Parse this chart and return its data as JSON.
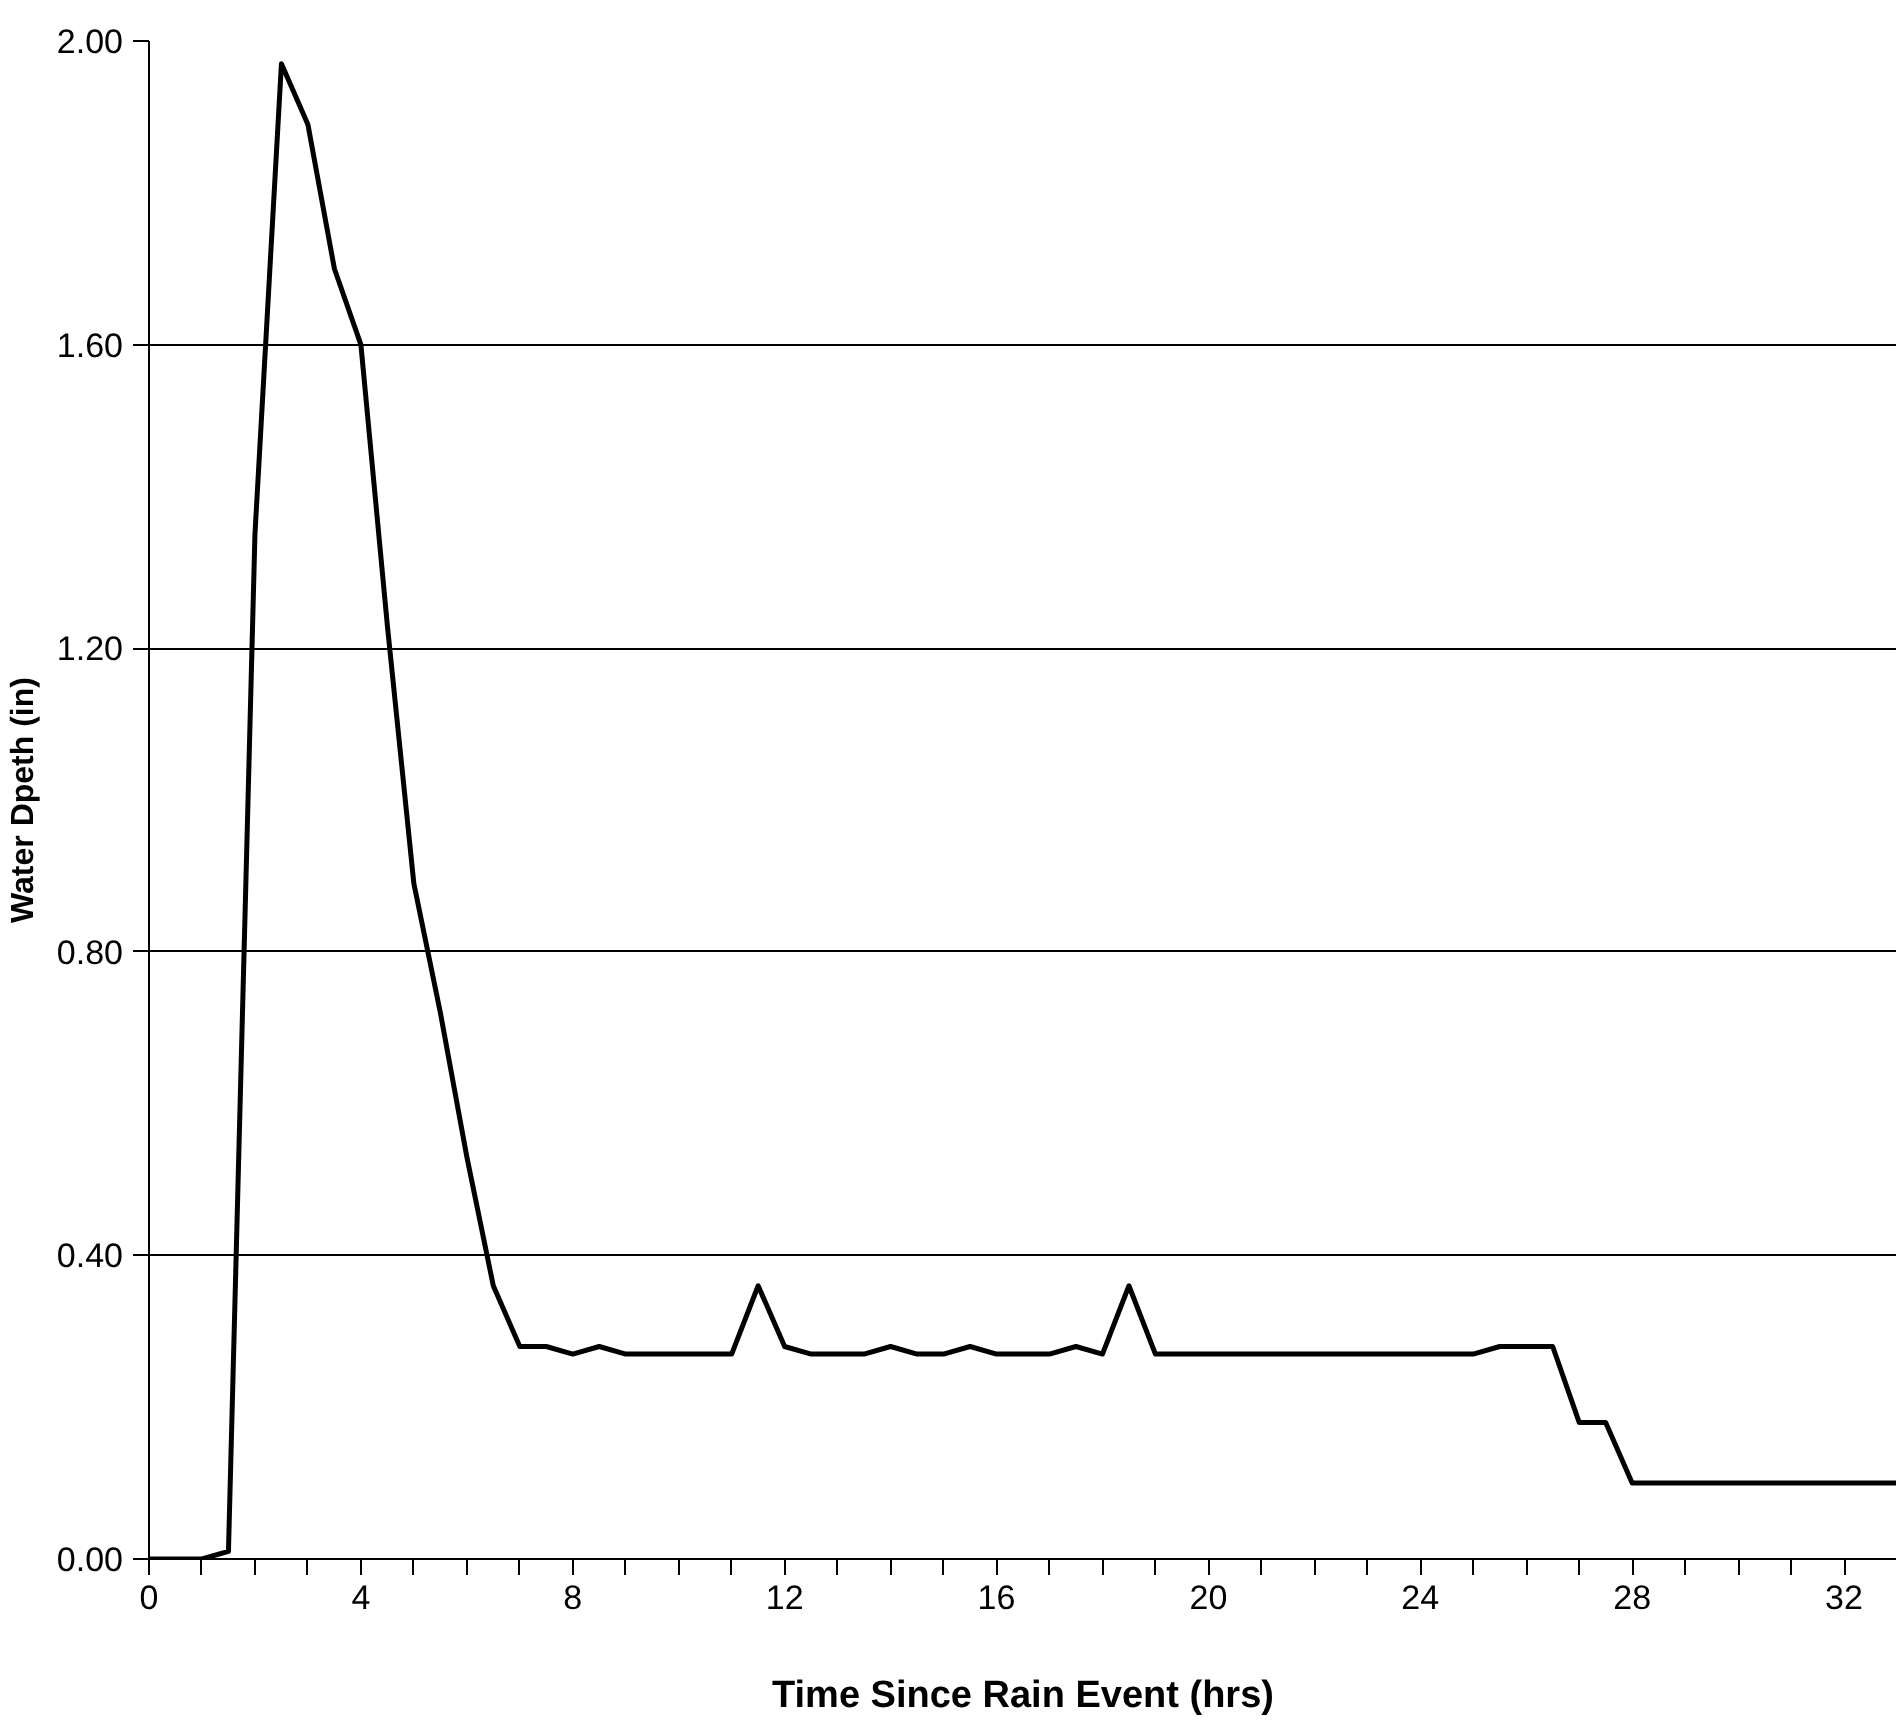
{
  "chart_data": {
    "type": "line",
    "xlabel": "Time Since Rain Event (hrs)",
    "ylabel": "Water Dpeth (in)",
    "x": [
      0,
      0.5,
      1,
      1.5,
      2,
      2.5,
      3,
      3.5,
      4,
      4.5,
      5,
      5.5,
      6,
      6.5,
      7,
      7.5,
      8,
      8.5,
      9,
      9.5,
      10,
      10.5,
      11,
      11.5,
      12,
      12.5,
      13,
      13.5,
      14,
      14.5,
      15,
      15.5,
      16,
      16.5,
      17,
      17.5,
      18,
      18.5,
      19,
      19.5,
      20,
      20.5,
      21,
      21.5,
      22,
      22.5,
      23,
      23.5,
      24,
      24.5,
      25,
      25.5,
      26,
      26.5,
      27,
      27.5,
      28,
      28.5,
      29,
      29.5,
      30,
      30.5,
      31,
      31.5,
      32,
      32.5,
      33
    ],
    "values": [
      0,
      0,
      0,
      0.01,
      1.35,
      1.97,
      1.89,
      1.7,
      1.6,
      1.23,
      0.89,
      0.72,
      0.53,
      0.36,
      0.28,
      0.28,
      0.27,
      0.28,
      0.27,
      0.27,
      0.27,
      0.27,
      0.27,
      0.36,
      0.28,
      0.27,
      0.27,
      0.27,
      0.28,
      0.27,
      0.27,
      0.28,
      0.27,
      0.27,
      0.27,
      0.28,
      0.27,
      0.36,
      0.27,
      0.27,
      0.27,
      0.27,
      0.27,
      0.27,
      0.27,
      0.27,
      0.27,
      0.27,
      0.27,
      0.27,
      0.27,
      0.28,
      0.28,
      0.28,
      0.18,
      0.18,
      0.1,
      0.1,
      0.1,
      0.1,
      0.1,
      0.1,
      0.1,
      0.1,
      0.1,
      0.1,
      0.1
    ],
    "color": "#000000",
    "line_style": "solid",
    "marker": "none",
    "xlim": [
      0,
      33
    ],
    "xticks": [
      0,
      {
        "value": 1,
        "label": null
      },
      {
        "value": 2,
        "label": null
      },
      {
        "value": 3,
        "label": null
      },
      4,
      {
        "value": 5,
        "label": null
      },
      {
        "value": 6,
        "label": null
      },
      {
        "value": 7,
        "label": null
      },
      8,
      {
        "value": 9,
        "label": null
      },
      {
        "value": 10,
        "label": null
      },
      {
        "value": 11,
        "label": null
      },
      12,
      {
        "value": 13,
        "label": null
      },
      {
        "value": 14,
        "label": null
      },
      {
        "value": 15,
        "label": null
      },
      16,
      {
        "value": 17,
        "label": null
      },
      {
        "value": 18,
        "label": null
      },
      {
        "value": 19,
        "label": null
      },
      20,
      {
        "value": 21,
        "label": null
      },
      {
        "value": 22,
        "label": null
      },
      {
        "value": 23,
        "label": null
      },
      24,
      {
        "value": 25,
        "label": null
      },
      {
        "value": 26,
        "label": null
      },
      {
        "value": 27,
        "label": null
      },
      28,
      {
        "value": 29,
        "label": null
      },
      {
        "value": 30,
        "label": null
      },
      {
        "value": 31,
        "label": null
      },
      32,
      {
        "value": 33,
        "label": null
      }
    ],
    "ylim": [
      0,
      2
    ],
    "yticks": [
      {
        "value": 0,
        "label": "0.00"
      },
      {
        "value": 0.4,
        "label": "0.40"
      },
      {
        "value": 0.8,
        "label": "0.80"
      },
      {
        "value": 1.2,
        "label": "1.20"
      },
      {
        "value": 1.6,
        "label": "1.60"
      },
      {
        "value": 2,
        "label": "2.00"
      }
    ],
    "grid": "y"
  }
}
